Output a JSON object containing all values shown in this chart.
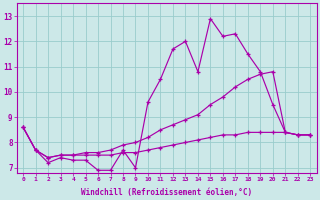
{
  "background_color": "#cce8e8",
  "line_color": "#aa00aa",
  "grid_color": "#99cccc",
  "xlabel": "Windchill (Refroidissement éolien,°C)",
  "ylabel_ticks": [
    7,
    8,
    9,
    10,
    11,
    12,
    13
  ],
  "xlim": [
    -0.5,
    23.5
  ],
  "ylim": [
    6.8,
    13.5
  ],
  "line1_x": [
    0,
    1,
    2,
    3,
    4,
    5,
    6,
    7,
    8,
    9,
    10,
    11,
    12,
    13,
    14,
    15,
    16,
    17,
    18,
    19,
    20,
    21,
    22,
    23
  ],
  "line1_y": [
    8.6,
    7.7,
    7.2,
    7.4,
    7.3,
    7.3,
    6.9,
    6.9,
    7.7,
    7.0,
    9.6,
    10.5,
    11.7,
    12.0,
    10.8,
    12.9,
    12.2,
    12.3,
    11.5,
    10.8,
    9.5,
    8.4,
    8.3,
    8.3
  ],
  "line2_x": [
    0,
    1,
    2,
    3,
    4,
    5,
    6,
    7,
    8,
    9,
    10,
    11,
    12,
    13,
    14,
    15,
    16,
    17,
    18,
    19,
    20,
    21,
    22,
    23
  ],
  "line2_y": [
    8.6,
    7.7,
    7.4,
    7.5,
    7.5,
    7.6,
    7.6,
    7.7,
    7.9,
    8.0,
    8.2,
    8.5,
    8.7,
    8.9,
    9.1,
    9.5,
    9.8,
    10.2,
    10.5,
    10.7,
    10.8,
    8.4,
    8.3,
    8.3
  ],
  "line3_x": [
    0,
    1,
    2,
    3,
    4,
    5,
    6,
    7,
    8,
    9,
    10,
    11,
    12,
    13,
    14,
    15,
    16,
    17,
    18,
    19,
    20,
    21,
    22,
    23
  ],
  "line3_y": [
    8.6,
    7.7,
    7.4,
    7.5,
    7.5,
    7.5,
    7.5,
    7.5,
    7.6,
    7.6,
    7.7,
    7.8,
    7.9,
    8.0,
    8.1,
    8.2,
    8.3,
    8.3,
    8.4,
    8.4,
    8.4,
    8.4,
    8.3,
    8.3
  ],
  "xtick_labels": [
    "0",
    "1",
    "2",
    "3",
    "4",
    "5",
    "6",
    "7",
    "8",
    "9",
    "10",
    "11",
    "12",
    "13",
    "14",
    "15",
    "16",
    "17",
    "18",
    "19",
    "20",
    "21",
    "22",
    "23"
  ]
}
